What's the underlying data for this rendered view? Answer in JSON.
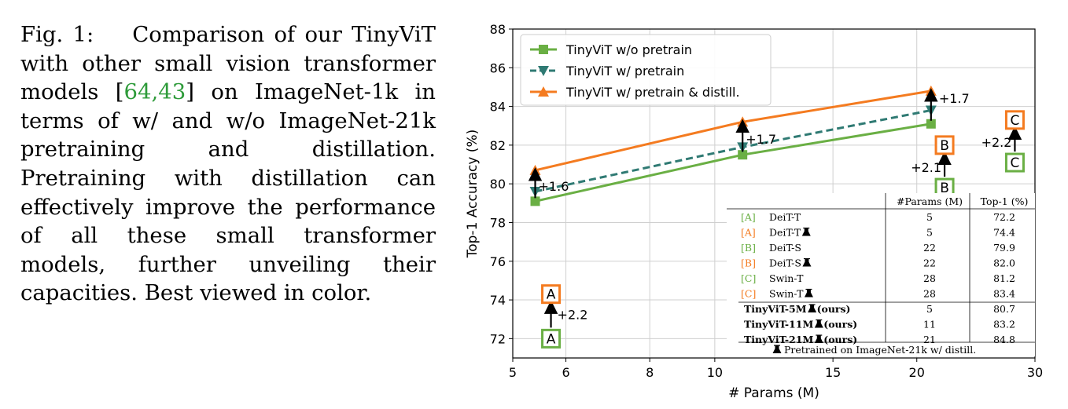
{
  "caption": {
    "prefix": "Fig. 1:",
    "text_before": "Comparison of our TinyViT with other small vision transformer models [",
    "citations": "64,43",
    "text_after": "] on ImageNet-1k in terms of w/ and w/o ImageNet-21k pretraining and distillation. Pretraining with distillation can effectively improve the performance of all these small transformer models, further unveiling their capacities. Best viewed in color."
  },
  "chart_data": {
    "type": "line",
    "xlabel": "# Params (M)",
    "ylabel": "Top-1 Accuracy (%)",
    "x_scale": "log",
    "xlim": [
      5,
      30
    ],
    "ylim": [
      71,
      88
    ],
    "x_ticks": [
      5,
      6,
      8,
      10,
      15,
      20,
      30
    ],
    "y_ticks": [
      72,
      74,
      76,
      78,
      80,
      82,
      84,
      86,
      88
    ],
    "grid": true,
    "legend_position": "top-left",
    "series": [
      {
        "name": "TinyViT w/o pretrain",
        "color": "#6aaf44",
        "dash": "solid",
        "marker": "square",
        "x": [
          5.4,
          11,
          21
        ],
        "y": [
          79.1,
          81.5,
          83.1
        ]
      },
      {
        "name": "TinyViT w/ pretrain",
        "color": "#2f7a73",
        "dash": "dashed",
        "marker": "triangle-down",
        "x": [
          5.4,
          11,
          21
        ],
        "y": [
          79.6,
          81.9,
          83.8
        ]
      },
      {
        "name": "TinyViT w/ pretrain & distill.",
        "color": "#f47b20",
        "dash": "solid",
        "marker": "triangle-up",
        "x": [
          5.4,
          11,
          21
        ],
        "y": [
          80.7,
          83.2,
          84.8
        ]
      }
    ],
    "annotations": [
      {
        "x": 5.4,
        "y_from": 79.1,
        "y_to": 80.7,
        "text": "+1.6"
      },
      {
        "x": 11,
        "y_from": 81.5,
        "y_to": 83.2,
        "text": "+1.7"
      },
      {
        "x": 21,
        "y_from": 83.1,
        "y_to": 84.8,
        "text": "+1.7"
      },
      {
        "x": 5.7,
        "y_from": 72.0,
        "y_to": 74.2,
        "text": "+2.2"
      },
      {
        "x": 22,
        "y_from": 79.8,
        "y_to": 81.9,
        "text": "+2.1"
      },
      {
        "x": 28,
        "y_from": 81.1,
        "y_to": 83.2,
        "text": "+2.2"
      }
    ],
    "boxes": [
      {
        "label": "A",
        "x": 5.7,
        "y": 72.0,
        "color": "#6aaf44"
      },
      {
        "label": "A",
        "x": 5.7,
        "y": 74.3,
        "color": "#f47b20"
      },
      {
        "label": "B",
        "x": 22,
        "y": 79.8,
        "color": "#6aaf44"
      },
      {
        "label": "B",
        "x": 22,
        "y": 82.0,
        "color": "#f47b20"
      },
      {
        "label": "C",
        "x": 28,
        "y": 81.1,
        "color": "#6aaf44"
      },
      {
        "label": "C",
        "x": 28,
        "y": 83.3,
        "color": "#f47b20"
      }
    ],
    "table": {
      "headers": [
        "#Params (M)",
        "Top-1 (%)"
      ],
      "rows": [
        {
          "tag": "A",
          "tag_color": "#6aaf44",
          "name": "DeiT-T",
          "params": "5",
          "top1": "72.2",
          "bold": false,
          "icon": false
        },
        {
          "tag": "A",
          "tag_color": "#f47b20",
          "name": "DeiT-T",
          "params": "5",
          "top1": "74.4",
          "bold": false,
          "icon": true
        },
        {
          "tag": "B",
          "tag_color": "#6aaf44",
          "name": "DeiT-S",
          "params": "22",
          "top1": "79.9",
          "bold": false,
          "icon": false
        },
        {
          "tag": "B",
          "tag_color": "#f47b20",
          "name": "DeiT-S",
          "params": "22",
          "top1": "82.0",
          "bold": false,
          "icon": true
        },
        {
          "tag": "C",
          "tag_color": "#6aaf44",
          "name": "Swin-T",
          "params": "28",
          "top1": "81.2",
          "bold": false,
          "icon": false
        },
        {
          "tag": "C",
          "tag_color": "#f47b20",
          "name": "Swin-T",
          "params": "28",
          "top1": "83.4",
          "bold": false,
          "icon": true
        },
        {
          "tag": "",
          "tag_color": "#000000",
          "name": "TinyViT-5M",
          "suffix": " (ours)",
          "params": "5",
          "top1": "80.7",
          "bold": true,
          "icon": true
        },
        {
          "tag": "",
          "tag_color": "#000000",
          "name": "TinyViT-11M",
          "suffix": " (ours)",
          "params": "11",
          "top1": "83.2",
          "bold": true,
          "icon": true
        },
        {
          "tag": "",
          "tag_color": "#000000",
          "name": "TinyViT-21M",
          "suffix": " (ours)",
          "params": "21",
          "top1": "84.8",
          "bold": true,
          "icon": true
        }
      ],
      "footnote": "Pretrained on ImageNet-21k w/ distill.",
      "icon_name": "flask-icon"
    }
  }
}
